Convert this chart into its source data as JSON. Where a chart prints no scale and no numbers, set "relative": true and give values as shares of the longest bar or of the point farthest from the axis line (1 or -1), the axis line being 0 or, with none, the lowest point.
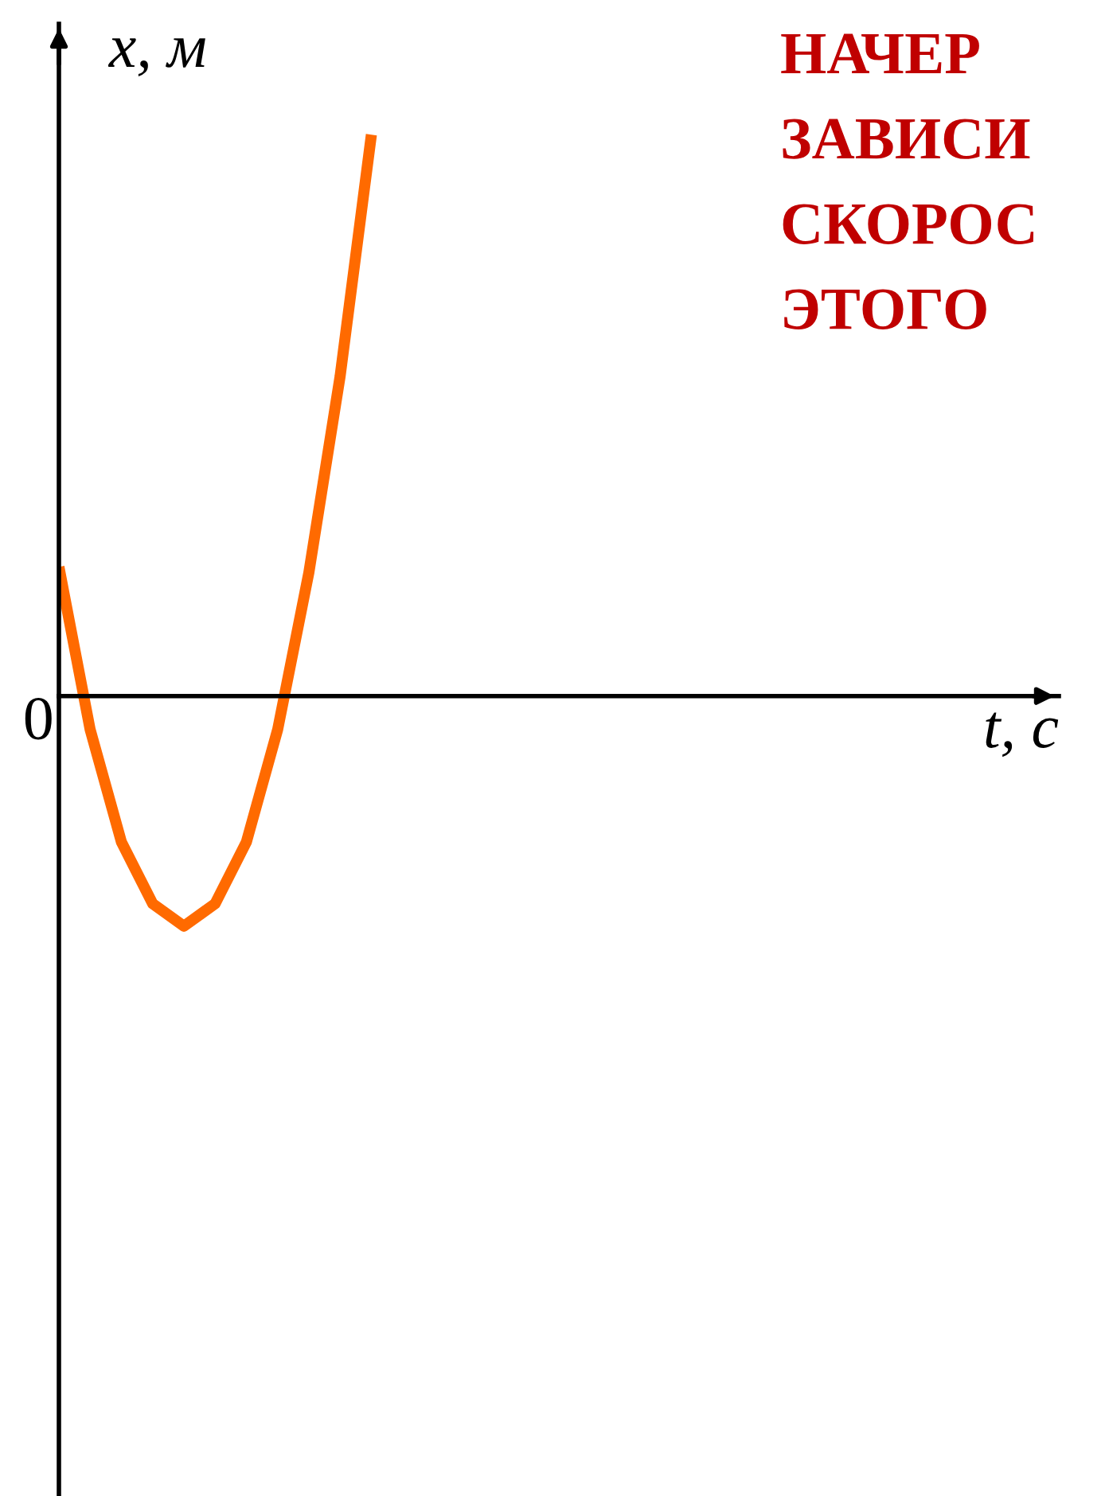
{
  "chart_data": {
    "type": "line",
    "relative": true,
    "title": "НАЧЕР\nЗАВИСИ\nСКОРОС\nЭТОГО",
    "xlabel": "t, с",
    "ylabel": "x, м",
    "annotations": [
      "0"
    ],
    "categories": [
      null,
      null,
      null,
      null,
      null,
      null,
      null,
      null,
      null,
      null,
      null,
      null,
      null,
      null,
      null,
      null,
      null,
      null,
      null,
      null,
      null,
      null,
      null,
      null,
      null,
      null,
      null,
      null,
      null,
      null,
      null,
      null,
      null
    ],
    "series": [
      {
        "color": "#ff6a00",
        "values": [
          0.23,
          -0.06,
          -0.26,
          -0.37,
          -0.41,
          -0.37,
          -0.26,
          -0.06,
          0.22,
          0.57,
          1.0,
          null,
          null,
          null,
          null,
          null,
          null,
          null,
          null,
          null,
          null,
          null,
          null,
          null,
          null,
          null,
          null,
          null,
          null,
          null,
          null,
          null,
          null
        ]
      }
    ],
    "legend": false,
    "marker": "none",
    "line_style": "solid"
  }
}
